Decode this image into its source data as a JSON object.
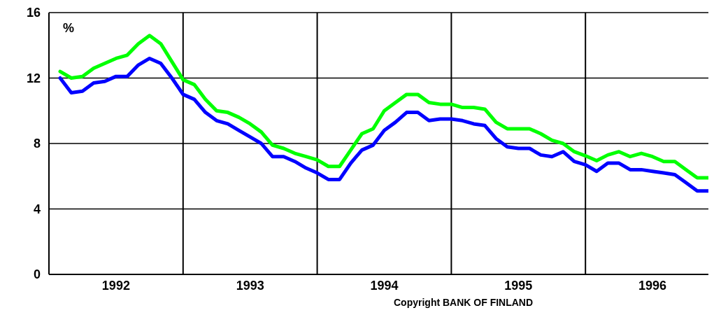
{
  "chart_data": {
    "type": "line",
    "ylabel": "%",
    "annotations": [
      "Copyright BANK OF FINLAND"
    ],
    "x": [
      "1992-02",
      "1992-03",
      "1992-04",
      "1992-05",
      "1992-06",
      "1992-07",
      "1992-08",
      "1992-09",
      "1992-10",
      "1992-11",
      "1992-12",
      "1993-01",
      "1993-02",
      "1993-03",
      "1993-04",
      "1993-05",
      "1993-06",
      "1993-07",
      "1993-08",
      "1993-09",
      "1993-10",
      "1993-11",
      "1993-12",
      "1994-01",
      "1994-02",
      "1994-03",
      "1994-04",
      "1994-05",
      "1994-06",
      "1994-07",
      "1994-08",
      "1994-09",
      "1994-10",
      "1994-11",
      "1994-12",
      "1995-01",
      "1995-02",
      "1995-03",
      "1995-04",
      "1995-05",
      "1995-06",
      "1995-07",
      "1995-08",
      "1995-09",
      "1995-10",
      "1995-11",
      "1995-12",
      "1996-01",
      "1996-02",
      "1996-03",
      "1996-04",
      "1996-05",
      "1996-06",
      "1996-07",
      "1996-08",
      "1996-09",
      "1996-10",
      "1996-11",
      "1996-12"
    ],
    "series": [
      {
        "color": "#00ff00",
        "values": [
          12.4,
          12.0,
          12.1,
          12.6,
          12.9,
          13.2,
          13.4,
          14.1,
          14.6,
          14.1,
          13.0,
          11.9,
          11.6,
          10.7,
          10.0,
          9.9,
          9.6,
          9.2,
          8.7,
          7.9,
          7.7,
          7.4,
          7.2,
          7.0,
          6.6,
          6.6,
          7.6,
          8.6,
          8.9,
          10.0,
          10.5,
          11.0,
          11.0,
          10.5,
          10.4,
          10.4,
          10.2,
          10.2,
          10.1,
          9.3,
          8.9,
          8.9,
          8.9,
          8.6,
          8.2,
          8.0,
          7.5,
          7.25,
          6.95,
          7.3,
          7.5,
          7.2,
          7.4,
          7.2,
          6.9,
          6.9,
          6.4,
          5.9,
          5.9
        ]
      },
      {
        "color": "#0000ff",
        "values": [
          12.0,
          11.1,
          11.2,
          11.7,
          11.8,
          12.1,
          12.1,
          12.8,
          13.2,
          12.9,
          12.0,
          11.0,
          10.7,
          9.9,
          9.4,
          9.2,
          8.8,
          8.4,
          8.0,
          7.2,
          7.2,
          6.9,
          6.5,
          6.2,
          5.8,
          5.8,
          6.8,
          7.6,
          7.9,
          8.8,
          9.3,
          9.9,
          9.9,
          9.4,
          9.5,
          9.5,
          9.4,
          9.2,
          9.1,
          8.3,
          7.8,
          7.7,
          7.7,
          7.3,
          7.2,
          7.5,
          6.9,
          6.7,
          6.3,
          6.8,
          6.8,
          6.4,
          6.4,
          6.3,
          6.2,
          6.1,
          5.6,
          5.1,
          5.1
        ]
      }
    ],
    "xlim": [
      "1992-01",
      "1996-12"
    ],
    "xticks": [
      {
        "value": "1992-07",
        "label": "1992"
      },
      {
        "value": "1993-01",
        "label": null
      },
      {
        "value": "1993-07",
        "label": "1993"
      },
      {
        "value": "1994-01",
        "label": null
      },
      {
        "value": "1994-07",
        "label": "1994"
      },
      {
        "value": "1995-01",
        "label": null
      },
      {
        "value": "1995-07",
        "label": "1995"
      },
      {
        "value": "1996-01",
        "label": null
      },
      {
        "value": "1996-07",
        "label": "1996"
      }
    ],
    "ylim": [
      0,
      16
    ],
    "yticks": [
      0,
      4,
      8,
      12,
      16
    ],
    "grid": true,
    "marker": "none",
    "line_style": "solid"
  }
}
